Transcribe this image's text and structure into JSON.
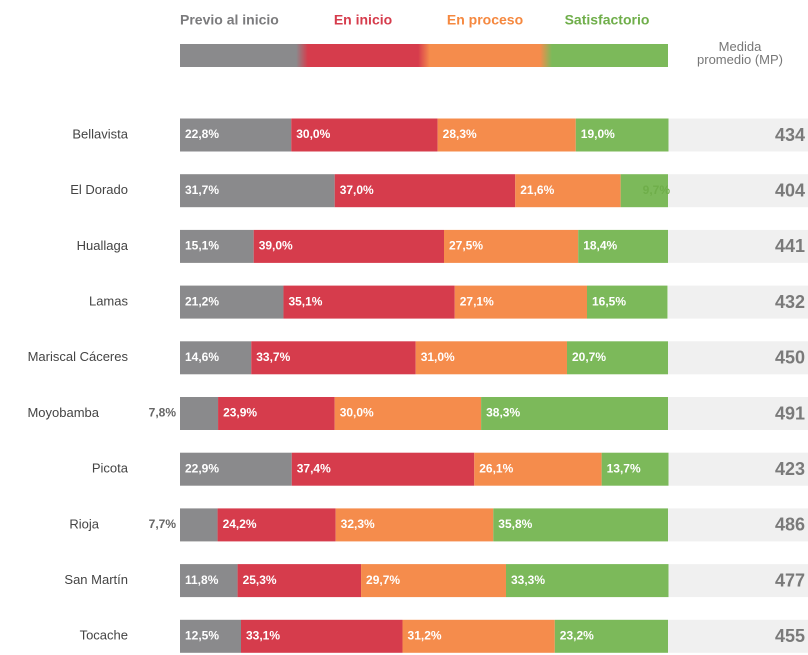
{
  "chart_data": {
    "type": "stacked-bar-horizontal",
    "categories": [
      "Bellavista",
      "El Dorado",
      "Huallaga",
      "Lamas",
      "Mariscal Cáceres",
      "Moyobamba",
      "Picota",
      "Rioja",
      "San Martín",
      "Tocache"
    ],
    "xlim": [
      0,
      100
    ],
    "series": [
      {
        "name": "Previo al inicio",
        "color": "#8a8a8c",
        "label_color": "#7b7b7d",
        "values": [
          22.8,
          31.7,
          15.1,
          21.2,
          14.6,
          7.8,
          22.9,
          7.7,
          11.8,
          12.5
        ],
        "value_labels": [
          "22,8%",
          "31,7%",
          "15,1%",
          "21,2%",
          "14,6%",
          "7,8%",
          "22,9%",
          "7,7%",
          "11,8%",
          "12,5%"
        ]
      },
      {
        "name": "En inicio",
        "color": "#d63c4c",
        "label_color": "#d63c4c",
        "values": [
          30.0,
          37.0,
          39.0,
          35.1,
          33.7,
          23.9,
          37.4,
          24.2,
          25.3,
          33.1
        ],
        "value_labels": [
          "30,0%",
          "37,0%",
          "39,0%",
          "35,1%",
          "33,7%",
          "23,9%",
          "37,4%",
          "24,2%",
          "25,3%",
          "33,1%"
        ]
      },
      {
        "name": "En proceso",
        "color": "#f58c4c",
        "label_color": "#f5883f",
        "values": [
          28.3,
          21.6,
          27.5,
          27.1,
          31.0,
          30.0,
          26.1,
          32.3,
          29.7,
          31.2
        ],
        "value_labels": [
          "28,3%",
          "21,6%",
          "27,5%",
          "27,1%",
          "31,0%",
          "30,0%",
          "26,1%",
          "32,3%",
          "29,7%",
          "31,2%"
        ]
      },
      {
        "name": "Satisfactorio",
        "color": "#7cb95a",
        "label_color": "#6fae4a",
        "values": [
          19.0,
          9.7,
          18.4,
          16.5,
          20.7,
          38.3,
          13.7,
          35.8,
          33.3,
          23.2
        ],
        "value_labels": [
          "19,0%",
          "9,7%",
          "18,4%",
          "16,5%",
          "20,7%",
          "38,3%",
          "13,7%",
          "35,8%",
          "33,3%",
          "23,2%"
        ]
      }
    ],
    "mp": {
      "title": "Medida promedio (MP)",
      "values": [
        434,
        404,
        441,
        432,
        450,
        491,
        423,
        486,
        477,
        455
      ]
    }
  }
}
